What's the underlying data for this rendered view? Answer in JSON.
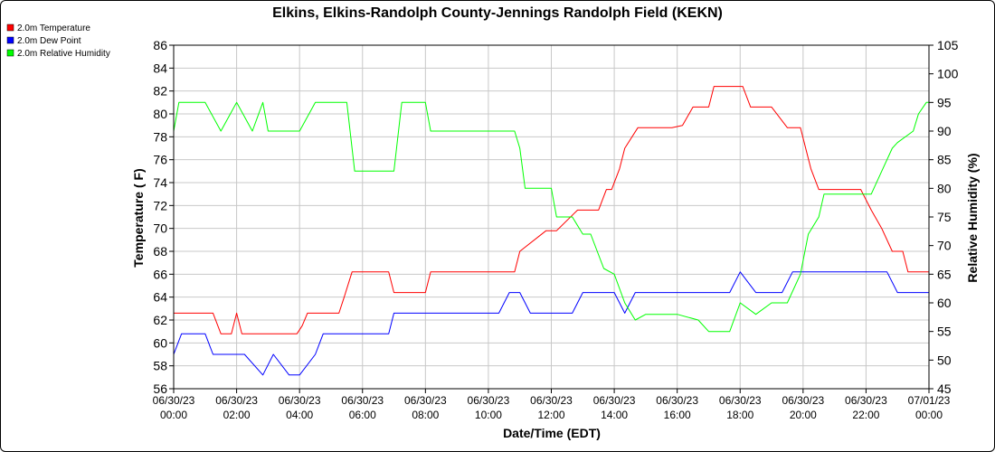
{
  "chart_data": {
    "type": "line",
    "title": "Elkins, Elkins-Randolph County-Jennings Randolph Field (KEKN)",
    "xlabel": "Date/Time (EDT)",
    "ylabel": "Temperature ( F)",
    "y2label": "Relative Humidity (%)",
    "xlim": [
      "06/30/23 00:00",
      "07/01/23 00:00"
    ],
    "ylim": [
      56,
      86
    ],
    "y2lim": [
      45,
      105
    ],
    "grid": true,
    "legend_placement": "top-left",
    "x_ticks": [
      {
        "date": "06/30/23",
        "time": "00:00"
      },
      {
        "date": "06/30/23",
        "time": "02:00"
      },
      {
        "date": "06/30/23",
        "time": "04:00"
      },
      {
        "date": "06/30/23",
        "time": "06:00"
      },
      {
        "date": "06/30/23",
        "time": "08:00"
      },
      {
        "date": "06/30/23",
        "time": "10:00"
      },
      {
        "date": "06/30/23",
        "time": "12:00"
      },
      {
        "date": "06/30/23",
        "time": "14:00"
      },
      {
        "date": "06/30/23",
        "time": "16:00"
      },
      {
        "date": "06/30/23",
        "time": "18:00"
      },
      {
        "date": "06/30/23",
        "time": "20:00"
      },
      {
        "date": "06/30/23",
        "time": "22:00"
      },
      {
        "date": "07/01/23",
        "time": "00:00"
      }
    ],
    "y_ticks": [
      56,
      58,
      60,
      62,
      64,
      66,
      68,
      70,
      72,
      74,
      76,
      78,
      80,
      82,
      84,
      86
    ],
    "y2_ticks": [
      45,
      50,
      55,
      60,
      65,
      70,
      75,
      80,
      85,
      90,
      95,
      100,
      105
    ],
    "series": [
      {
        "name": "2.0m Temperature",
        "color": "#ff0000",
        "axis": "left",
        "x": [
          "06/30/23 00:00",
          "06/30/23 01:15",
          "06/30/23 01:30",
          "06/30/23 01:50",
          "06/30/23 02:00",
          "06/30/23 02:10",
          "06/30/23 02:20",
          "06/30/23 03:55",
          "06/30/23 04:05",
          "06/30/23 04:15",
          "06/30/23 05:00",
          "06/30/23 05:15",
          "06/30/23 05:25",
          "06/30/23 05:40",
          "06/30/23 06:00",
          "06/30/23 06:50",
          "06/30/23 07:00",
          "06/30/23 07:30",
          "06/30/23 08:00",
          "06/30/23 08:10",
          "06/30/23 09:50",
          "06/30/23 10:20",
          "06/30/23 10:50",
          "06/30/23 11:00",
          "06/30/23 11:50",
          "06/30/23 12:10",
          "06/30/23 12:50",
          "06/30/23 13:10",
          "06/30/23 13:30",
          "06/30/23 13:45",
          "06/30/23 13:55",
          "06/30/23 14:10",
          "06/30/23 14:20",
          "06/30/23 14:45",
          "06/30/23 15:00",
          "06/30/23 15:50",
          "06/30/23 16:10",
          "06/30/23 16:30",
          "06/30/23 16:40",
          "06/30/23 17:00",
          "06/30/23 17:10",
          "06/30/23 17:30",
          "06/30/23 18:05",
          "06/30/23 18:20",
          "06/30/23 18:40",
          "06/30/23 19:00",
          "06/30/23 19:30",
          "06/30/23 19:55",
          "06/30/23 20:15",
          "06/30/23 20:30",
          "06/30/23 20:50",
          "06/30/23 21:50",
          "06/30/23 22:10",
          "06/30/23 22:30",
          "06/30/23 22:50",
          "06/30/23 23:10",
          "06/30/23 23:20",
          "06/30/23 23:40",
          "06/30/23 23:55",
          "07/01/23 00:00"
        ],
        "values": [
          62.6,
          62.6,
          60.8,
          60.8,
          62.6,
          60.8,
          60.8,
          60.8,
          61.5,
          62.6,
          62.6,
          62.6,
          64.0,
          66.2,
          66.2,
          66.2,
          64.4,
          64.4,
          64.4,
          66.2,
          66.2,
          66.2,
          66.2,
          68.0,
          69.8,
          69.8,
          71.6,
          71.6,
          71.6,
          73.4,
          73.4,
          75.2,
          77.0,
          78.8,
          78.8,
          78.8,
          79.0,
          80.6,
          80.6,
          80.6,
          82.4,
          82.4,
          82.4,
          80.6,
          80.6,
          80.6,
          78.8,
          78.8,
          75.2,
          73.4,
          73.4,
          73.4,
          71.6,
          70.0,
          68.0,
          68.0,
          66.2,
          66.2,
          66.2,
          66.2
        ]
      },
      {
        "name": "2.0m Dew Point",
        "color": "#0000ff",
        "axis": "left",
        "x": [
          "06/30/23 00:00",
          "06/30/23 00:15",
          "06/30/23 01:00",
          "06/30/23 01:15",
          "06/30/23 02:00",
          "06/30/23 02:15",
          "06/30/23 02:50",
          "06/30/23 03:10",
          "06/30/23 03:40",
          "06/30/23 04:00",
          "06/30/23 04:30",
          "06/30/23 04:45",
          "06/30/23 05:00",
          "06/30/23 05:30",
          "06/30/23 06:00",
          "06/30/23 06:50",
          "06/30/23 07:00",
          "06/30/23 08:00",
          "06/30/23 09:00",
          "06/30/23 10:00",
          "06/30/23 10:20",
          "06/30/23 10:40",
          "06/30/23 11:00",
          "06/30/23 11:20",
          "06/30/23 12:00",
          "06/30/23 12:40",
          "06/30/23 13:00",
          "06/30/23 13:40",
          "06/30/23 14:00",
          "06/30/23 14:20",
          "06/30/23 14:40",
          "06/30/23 15:00",
          "06/30/23 16:00",
          "06/30/23 16:40",
          "06/30/23 17:00",
          "06/30/23 17:40",
          "06/30/23 18:00",
          "06/30/23 18:30",
          "06/30/23 19:00",
          "06/30/23 19:20",
          "06/30/23 19:40",
          "06/30/23 20:00",
          "06/30/23 20:50",
          "06/30/23 21:00",
          "06/30/23 21:50",
          "06/30/23 22:00",
          "06/30/23 22:40",
          "06/30/23 23:00",
          "06/30/23 23:50",
          "07/01/23 00:00"
        ],
        "values": [
          59.0,
          60.8,
          60.8,
          59.0,
          59.0,
          59.0,
          57.2,
          59.0,
          57.2,
          57.2,
          59.0,
          60.8,
          60.8,
          60.8,
          60.8,
          60.8,
          62.6,
          62.6,
          62.6,
          62.6,
          62.6,
          64.4,
          64.4,
          62.6,
          62.6,
          62.6,
          64.4,
          64.4,
          64.4,
          62.6,
          64.4,
          64.4,
          64.4,
          64.4,
          64.4,
          64.4,
          66.2,
          64.4,
          64.4,
          64.4,
          66.2,
          66.2,
          66.2,
          66.2,
          66.2,
          66.2,
          66.2,
          64.4,
          64.4,
          64.4
        ]
      },
      {
        "name": "2.0m Relative Humidity",
        "color": "#00ff00",
        "axis": "right",
        "x": [
          "06/30/23 00:00",
          "06/30/23 00:10",
          "06/30/23 01:00",
          "06/30/23 01:30",
          "06/30/23 02:00",
          "06/30/23 02:30",
          "06/30/23 02:50",
          "06/30/23 03:00",
          "06/30/23 04:00",
          "06/30/23 04:30",
          "06/30/23 05:00",
          "06/30/23 05:30",
          "06/30/23 05:45",
          "06/30/23 06:30",
          "06/30/23 07:00",
          "06/30/23 07:15",
          "06/30/23 08:00",
          "06/30/23 08:10",
          "06/30/23 10:00",
          "06/30/23 10:50",
          "06/30/23 11:00",
          "06/30/23 11:10",
          "06/30/23 12:00",
          "06/30/23 12:10",
          "06/30/23 12:40",
          "06/30/23 13:00",
          "06/30/23 13:15",
          "06/30/23 13:40",
          "06/30/23 14:00",
          "06/30/23 14:20",
          "06/30/23 14:40",
          "06/30/23 15:00",
          "06/30/23 16:00",
          "06/30/23 16:40",
          "06/30/23 17:00",
          "06/30/23 17:40",
          "06/30/23 18:00",
          "06/30/23 18:30",
          "06/30/23 19:00",
          "06/30/23 19:30",
          "06/30/23 19:55",
          "06/30/23 20:10",
          "06/30/23 20:30",
          "06/30/23 20:40",
          "06/30/23 21:00",
          "06/30/23 22:00",
          "06/30/23 22:10",
          "06/30/23 22:30",
          "06/30/23 22:50",
          "06/30/23 23:00",
          "06/30/23 23:30",
          "06/30/23 23:40",
          "06/30/23 23:55",
          "07/01/23 00:00"
        ],
        "values": [
          90,
          95,
          95,
          90,
          95,
          90,
          95,
          90,
          90,
          95,
          95,
          95,
          83,
          83,
          83,
          95,
          95,
          90,
          90,
          90,
          87,
          80,
          80,
          75,
          75,
          72,
          72,
          66,
          65,
          60,
          57,
          58,
          58,
          57,
          55,
          55,
          60,
          58,
          60,
          60,
          65,
          72,
          75,
          79,
          79,
          79,
          79,
          83,
          87,
          88,
          90,
          93,
          95,
          95
        ]
      }
    ]
  }
}
